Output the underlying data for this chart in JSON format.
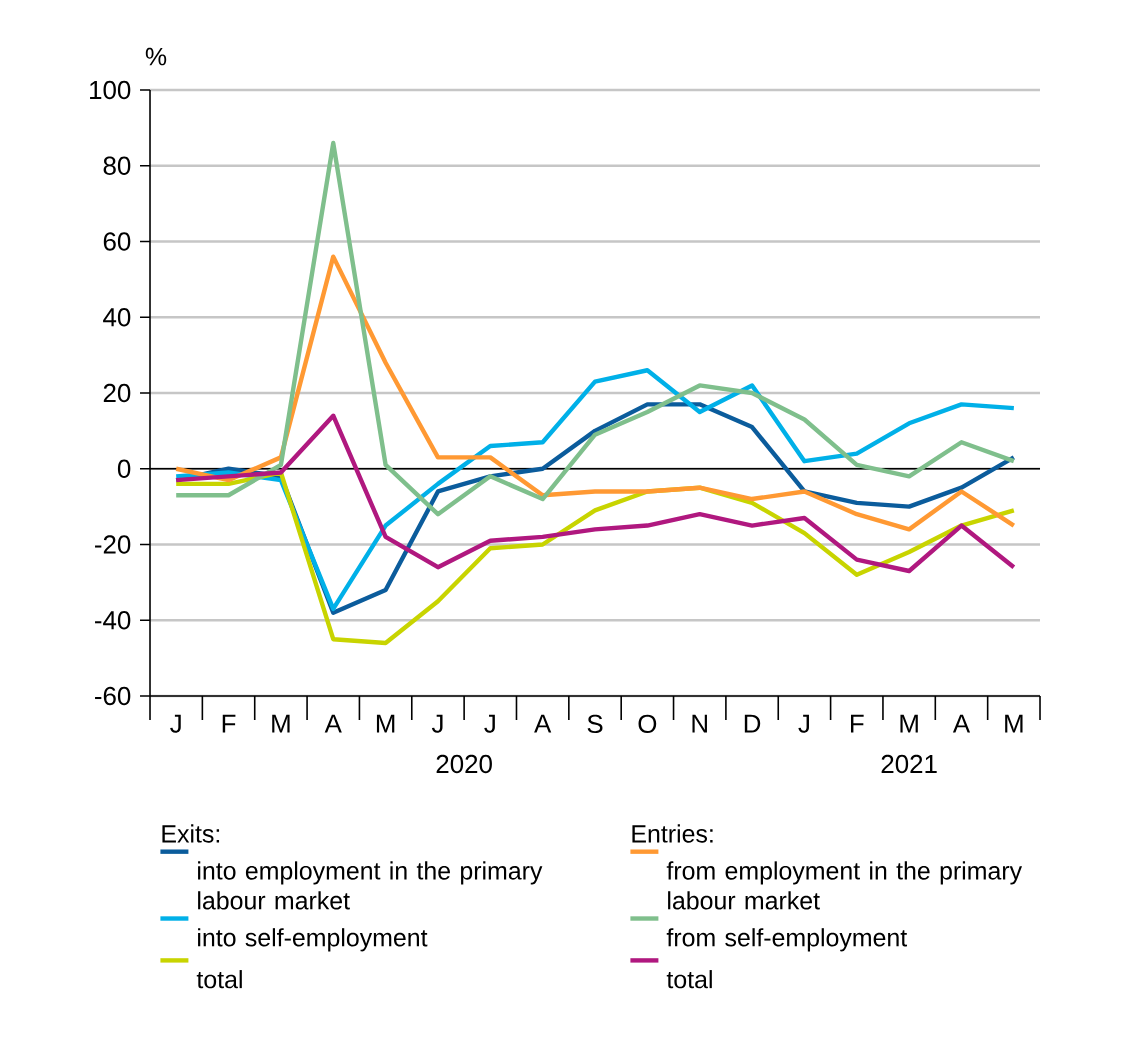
{
  "chart_data": {
    "type": "line",
    "ylabel": "%",
    "categories": [
      "J",
      "F",
      "M",
      "A",
      "M",
      "J",
      "J",
      "A",
      "S",
      "O",
      "N",
      "D",
      "J",
      "F",
      "M",
      "A",
      "M"
    ],
    "ylim": [
      -60,
      100
    ],
    "yticks": [
      -60,
      -40,
      -20,
      0,
      20,
      40,
      60,
      80,
      100
    ],
    "grid": "y",
    "legend": "bottom",
    "marker": "none",
    "line_style": "solid",
    "ref_lines": [
      {
        "axis": "y",
        "value": 0,
        "color": "#000000"
      }
    ],
    "annotations": [
      "2020",
      "2021",
      "Exits:",
      "Entries:"
    ],
    "series": [
      {
        "name": "into employment in the primary labour market",
        "color": "#0b5c9c",
        "values": [
          -3,
          0,
          -2,
          -38,
          -32,
          -6,
          -2,
          0,
          10,
          17,
          17,
          11,
          -6,
          -9,
          -10,
          -5,
          3
        ]
      },
      {
        "name": "into self-employment",
        "color": "#00b0e8",
        "values": [
          -2,
          -1,
          -3,
          -37,
          -15,
          -4,
          6,
          7,
          23,
          26,
          15,
          22,
          2,
          4,
          12,
          17,
          16
        ]
      },
      {
        "name": "total",
        "color": "#c8d400",
        "values": [
          -4,
          -4,
          -1,
          -45,
          -46,
          -35,
          -21,
          -20,
          -11,
          -6,
          -5,
          -9,
          -17,
          -28,
          -22,
          -15,
          -11
        ]
      },
      {
        "name": "from employment in the primary labour market",
        "color": "#ff9933",
        "values": [
          0,
          -3,
          3,
          56,
          28,
          3,
          3,
          -7,
          -6,
          -6,
          -5,
          -8,
          -6,
          -12,
          -16,
          -6,
          -15
        ]
      },
      {
        "name": "from self-employment",
        "color": "#7fbf8c",
        "values": [
          -7,
          -7,
          1,
          86,
          1,
          -12,
          -2,
          -8,
          9,
          15,
          22,
          20,
          13,
          1,
          -2,
          7,
          2
        ]
      },
      {
        "name": "total",
        "color": "#b0187f",
        "values": [
          -3,
          -2,
          -1,
          14,
          -18,
          -26,
          -19,
          -18,
          -16,
          -15,
          -12,
          -15,
          -13,
          -24,
          -27,
          -15,
          -26
        ]
      }
    ]
  }
}
